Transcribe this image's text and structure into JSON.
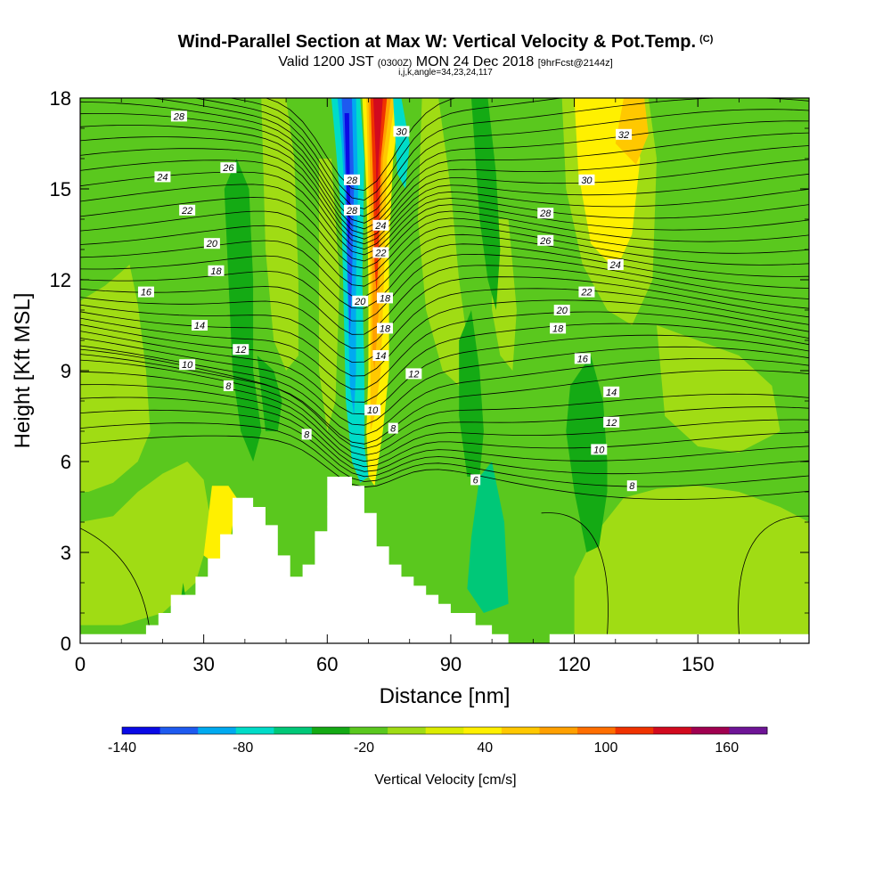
{
  "header": {
    "title": "Wind-Parallel Section at Max W: Vertical Velocity & Pot.Temp.",
    "copyright": "(C)",
    "valid_prefix": "Valid 1200 JST",
    "valid_utc": "(0300Z)",
    "valid_date": "MON 24 Dec 2018",
    "forecast": "[9hrFcst@2144z]",
    "grid_info": "i,j,k,angle=34,23,24,117"
  },
  "chart_data": {
    "type": "heatmap",
    "title": "Wind-Parallel Section at Max W: Vertical Velocity & Pot.Temp.",
    "xlabel": "Distance [nm]",
    "ylabel": "Height [Kft MSL]",
    "xlim": [
      0,
      177
    ],
    "ylim": [
      0,
      18
    ],
    "x_ticks": [
      0,
      30,
      60,
      90,
      120,
      150
    ],
    "y_ticks": [
      0,
      3,
      6,
      9,
      12,
      15,
      18
    ],
    "grid": false,
    "field": "Vertical Velocity [cm/s]",
    "colorbar": {
      "label": "Vertical Velocity [cm/s]",
      "range": [
        -140,
        180
      ],
      "tick_values": [
        -140,
        -80,
        -20,
        40,
        100,
        160
      ],
      "tick_labels": [
        "-140",
        "-80",
        "-20",
        "40",
        "100",
        "160"
      ],
      "colors": [
        "#0a0ae6",
        "#1e5af0",
        "#00aaf0",
        "#00dcc8",
        "#00c878",
        "#14aa14",
        "#5ac81e",
        "#a0dc14",
        "#dcec00",
        "#fff000",
        "#ffc800",
        "#ffa000",
        "#ff6e00",
        "#f03200",
        "#d20a1e",
        "#a00050",
        "#6e1496"
      ]
    },
    "terrain": {
      "x": [
        0,
        16,
        16,
        19,
        19,
        22,
        22,
        28,
        28,
        31,
        31,
        34,
        34,
        37,
        37,
        42,
        42,
        45,
        45,
        48,
        48,
        51,
        51,
        54,
        54,
        57,
        57,
        60,
        60,
        66,
        66,
        69,
        69,
        72,
        72,
        75,
        75,
        78,
        78,
        81,
        81,
        84,
        84,
        87,
        87,
        90,
        90,
        96,
        96,
        100,
        100,
        104,
        104,
        114,
        114,
        177
      ],
      "y": [
        0.3,
        0.3,
        0.6,
        0.6,
        1.0,
        1.0,
        1.6,
        1.6,
        2.2,
        2.2,
        2.8,
        2.8,
        3.6,
        3.6,
        4.8,
        4.8,
        4.5,
        4.5,
        3.9,
        3.9,
        2.9,
        2.9,
        2.2,
        2.2,
        2.6,
        2.6,
        3.7,
        3.7,
        5.5,
        5.5,
        5.2,
        5.2,
        4.3,
        4.3,
        3.2,
        3.2,
        2.6,
        2.6,
        2.2,
        2.2,
        1.9,
        1.9,
        1.6,
        1.6,
        1.3,
        1.3,
        1.0,
        1.0,
        0.6,
        0.6,
        0.3,
        0.3,
        0.0,
        0.0,
        0.3,
        0.3
      ]
    },
    "potential_temperature_labels": [
      {
        "value": "28",
        "x": 24,
        "y": 17.4
      },
      {
        "value": "26",
        "x": 36,
        "y": 15.7
      },
      {
        "value": "24",
        "x": 20,
        "y": 15.4
      },
      {
        "value": "22",
        "x": 26,
        "y": 14.3
      },
      {
        "value": "20",
        "x": 32,
        "y": 13.2
      },
      {
        "value": "18",
        "x": 33,
        "y": 12.3
      },
      {
        "value": "16",
        "x": 16,
        "y": 11.6
      },
      {
        "value": "14",
        "x": 29,
        "y": 10.5
      },
      {
        "value": "12",
        "x": 39,
        "y": 9.7
      },
      {
        "value": "10",
        "x": 26,
        "y": 9.2
      },
      {
        "value": "8",
        "x": 36,
        "y": 8.5
      },
      {
        "value": "8",
        "x": 55,
        "y": 6.9
      },
      {
        "value": "30",
        "x": 78,
        "y": 16.9
      },
      {
        "value": "28",
        "x": 66,
        "y": 15.3
      },
      {
        "value": "28",
        "x": 66,
        "y": 14.3
      },
      {
        "value": "24",
        "x": 73,
        "y": 13.8
      },
      {
        "value": "22",
        "x": 73,
        "y": 12.9
      },
      {
        "value": "20",
        "x": 68,
        "y": 11.3
      },
      {
        "value": "18",
        "x": 74,
        "y": 11.4
      },
      {
        "value": "18",
        "x": 74,
        "y": 10.4
      },
      {
        "value": "14",
        "x": 73,
        "y": 9.5
      },
      {
        "value": "12",
        "x": 81,
        "y": 8.9
      },
      {
        "value": "10",
        "x": 71,
        "y": 7.7
      },
      {
        "value": "8",
        "x": 76,
        "y": 7.1
      },
      {
        "value": "6",
        "x": 96,
        "y": 5.4
      },
      {
        "value": "32",
        "x": 132,
        "y": 16.8
      },
      {
        "value": "30",
        "x": 123,
        "y": 15.3
      },
      {
        "value": "28",
        "x": 113,
        "y": 14.2
      },
      {
        "value": "26",
        "x": 113,
        "y": 13.3
      },
      {
        "value": "24",
        "x": 130,
        "y": 12.5
      },
      {
        "value": "22",
        "x": 123,
        "y": 11.6
      },
      {
        "value": "20",
        "x": 117,
        "y": 11.0
      },
      {
        "value": "18",
        "x": 116,
        "y": 10.4
      },
      {
        "value": "16",
        "x": 122,
        "y": 9.4
      },
      {
        "value": "14",
        "x": 129,
        "y": 8.3
      },
      {
        "value": "12",
        "x": 129,
        "y": 7.3
      },
      {
        "value": "10",
        "x": 126,
        "y": 6.4
      },
      {
        "value": "8",
        "x": 134,
        "y": 5.2
      }
    ]
  }
}
